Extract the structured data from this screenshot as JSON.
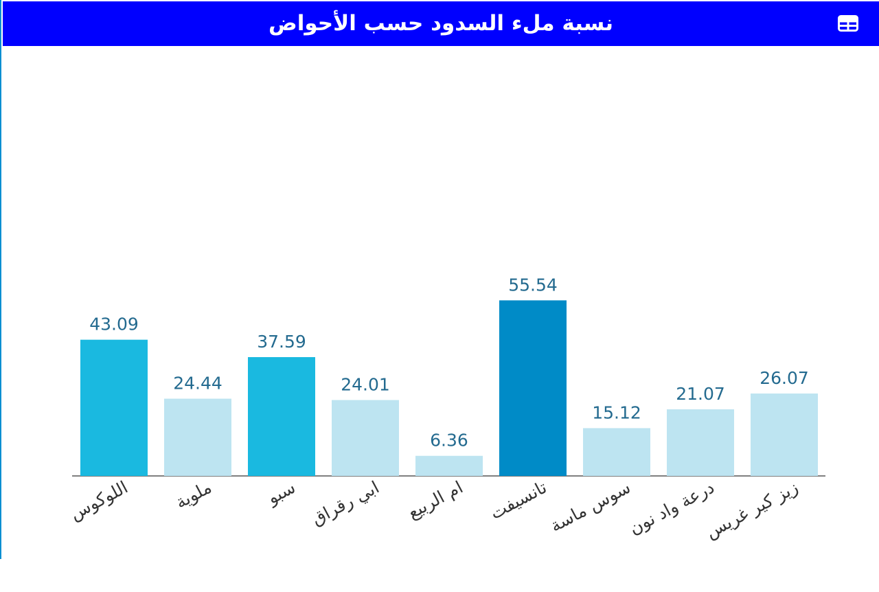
{
  "header": {
    "title": "نسبة ملء السدود حسب الأحواض",
    "table_icon": "table-icon"
  },
  "colors": {
    "header_bg": "#0000ff",
    "bar_high": "#008bc7",
    "bar_mid": "#1ab9e0",
    "bar_low": "#bde4f1",
    "value_label": "#236a8f",
    "axis": "#555555"
  },
  "chart_data": {
    "type": "bar",
    "title": "نسبة ملء السدود حسب الأحواض",
    "categories": [
      "اللوكوس",
      "ملوية",
      "سبو",
      "ابي رقراق",
      "ام الربيع",
      "تانسيفت",
      "سوس ماسة",
      "درعة واد نون",
      "زيز كير غريس"
    ],
    "values": [
      43.09,
      24.44,
      37.59,
      24.01,
      6.36,
      55.54,
      15.12,
      21.07,
      26.07
    ],
    "value_labels": [
      "43.09",
      "24.44",
      "37.59",
      "24.01",
      "6.36",
      "55.54",
      "15.12",
      "21.07",
      "26.07"
    ],
    "bar_tiers": [
      "mid",
      "low",
      "mid",
      "low",
      "low",
      "high",
      "low",
      "low",
      "low"
    ],
    "ylim": [
      0,
      136
    ],
    "xlabel": "",
    "ylabel": "",
    "grid": false,
    "legend": "none"
  }
}
